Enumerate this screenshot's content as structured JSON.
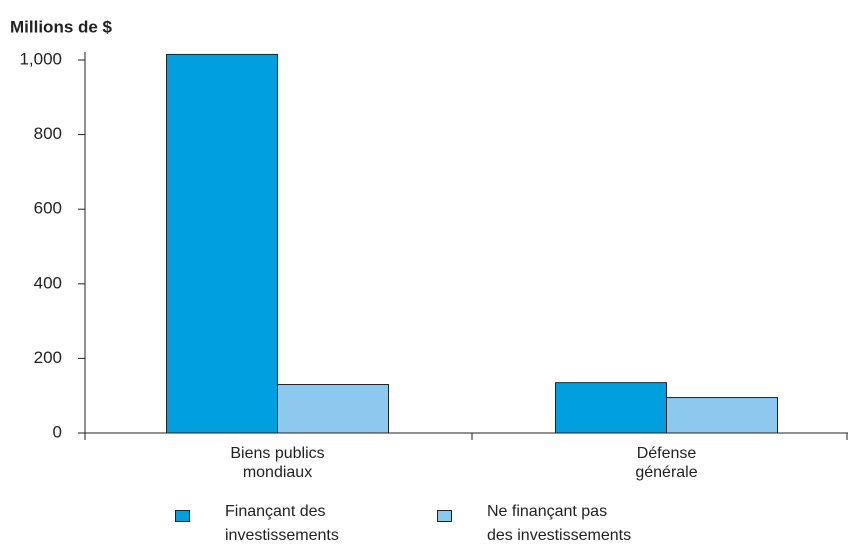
{
  "chart_data": {
    "type": "bar",
    "title": "Millions de $",
    "categories": [
      "Biens publics mondiaux",
      "Défense générale"
    ],
    "series": [
      {
        "name": "Finançant des investissements",
        "color": "#009fdf",
        "values": [
          1015,
          135
        ]
      },
      {
        "name": "Ne finançant pas des investissements",
        "color": "#8dc8ee",
        "values": [
          130,
          95
        ]
      }
    ],
    "ylim": [
      0,
      1000
    ],
    "yticks": [
      0,
      200,
      400,
      600,
      800,
      {
        "value": 1000,
        "label": "1,000"
      }
    ]
  }
}
